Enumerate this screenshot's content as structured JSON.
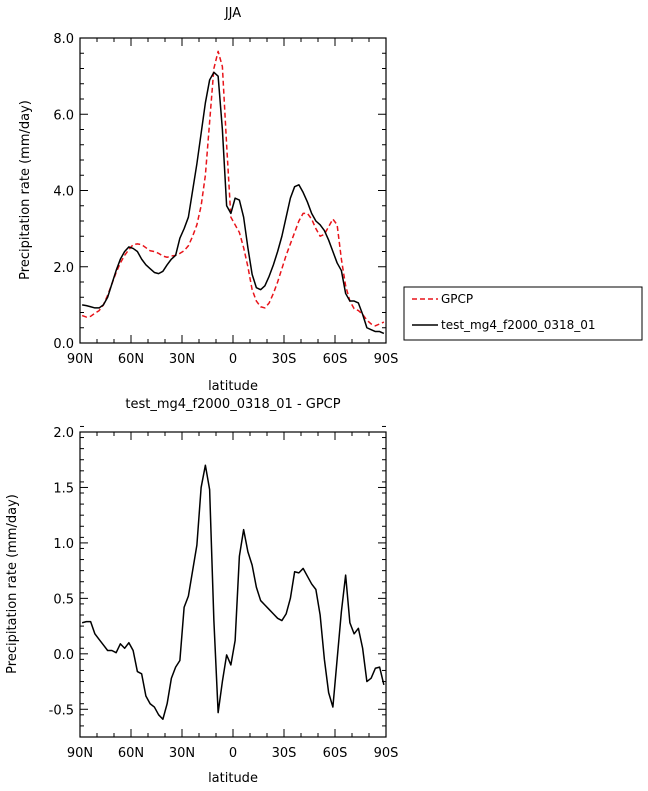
{
  "chart_data": [
    {
      "type": "line",
      "title": "JJA",
      "xlabel": "latitude",
      "ylabel": "Precipitation rate (mm/day)",
      "xlim": [
        90,
        -90
      ],
      "ylim": [
        0,
        8
      ],
      "xticks": [
        90,
        60,
        30,
        0,
        -30,
        -60,
        -90
      ],
      "xtick_labels": [
        "90N",
        "60N",
        "30N",
        "0",
        "30S",
        "60S",
        "90S"
      ],
      "yticks": [
        0,
        2,
        4,
        6,
        8
      ],
      "ytick_labels": [
        "0.0",
        "2.0",
        "4.0",
        "6.0",
        "8.0"
      ],
      "grid": false,
      "legend_position": "right",
      "series": [
        {
          "name": "GPCP",
          "color": "#e8141a",
          "dash": "dashed",
          "x": [
            88.75,
            86.25,
            83.75,
            81.25,
            78.75,
            76.25,
            73.75,
            71.25,
            68.75,
            66.25,
            63.75,
            61.25,
            58.75,
            56.25,
            53.75,
            51.25,
            48.75,
            46.25,
            43.75,
            41.25,
            38.75,
            36.25,
            33.75,
            31.25,
            28.75,
            26.25,
            23.75,
            21.25,
            18.75,
            16.25,
            13.75,
            11.25,
            8.75,
            6.25,
            3.75,
            1.25,
            -1.25,
            -3.75,
            -6.25,
            -8.75,
            -11.25,
            -13.75,
            -16.25,
            -18.75,
            -21.25,
            -23.75,
            -26.25,
            -28.75,
            -31.25,
            -33.75,
            -36.25,
            -38.75,
            -41.25,
            -43.75,
            -46.25,
            -48.75,
            -51.25,
            -53.75,
            -56.25,
            -58.75,
            -61.25,
            -63.75,
            -66.25,
            -68.75,
            -71.25,
            -73.75,
            -76.25,
            -78.75,
            -81.25,
            -83.75,
            -86.25,
            -88.75
          ],
          "y": [
            0.72,
            0.68,
            0.7,
            0.78,
            0.85,
            1.0,
            1.25,
            1.55,
            1.85,
            2.1,
            2.3,
            2.45,
            2.58,
            2.6,
            2.58,
            2.5,
            2.42,
            2.4,
            2.35,
            2.28,
            2.25,
            2.28,
            2.3,
            2.35,
            2.42,
            2.55,
            2.8,
            3.1,
            3.6,
            4.4,
            5.8,
            7.2,
            7.65,
            7.25,
            5.2,
            3.3,
            3.1,
            2.9,
            2.5,
            2.0,
            1.4,
            1.1,
            0.95,
            0.92,
            1.05,
            1.3,
            1.6,
            1.95,
            2.3,
            2.6,
            2.9,
            3.2,
            3.4,
            3.4,
            3.25,
            3.0,
            2.8,
            2.85,
            3.05,
            3.25,
            3.1,
            2.2,
            1.5,
            1.1,
            0.9,
            0.85,
            0.75,
            0.6,
            0.5,
            0.45,
            0.5,
            0.55
          ]
        },
        {
          "name": "test_mg4_f2000_0318_01",
          "color": "#000000",
          "dash": "solid",
          "x": [
            88.75,
            86.25,
            83.75,
            81.25,
            78.75,
            76.25,
            73.75,
            71.25,
            68.75,
            66.25,
            63.75,
            61.25,
            58.75,
            56.25,
            53.75,
            51.25,
            48.75,
            46.25,
            43.75,
            41.25,
            38.75,
            36.25,
            33.75,
            31.25,
            28.75,
            26.25,
            23.75,
            21.25,
            18.75,
            16.25,
            13.75,
            11.25,
            8.75,
            6.25,
            3.75,
            1.25,
            -1.25,
            -3.75,
            -6.25,
            -8.75,
            -11.25,
            -13.75,
            -16.25,
            -18.75,
            -21.25,
            -23.75,
            -26.25,
            -28.75,
            -31.25,
            -33.75,
            -36.25,
            -38.75,
            -41.25,
            -43.75,
            -46.25,
            -48.75,
            -51.25,
            -53.75,
            -56.25,
            -58.75,
            -61.25,
            -63.75,
            -66.25,
            -68.75,
            -71.25,
            -73.75,
            -76.25,
            -78.75,
            -81.25,
            -83.75,
            -86.25,
            -88.75
          ],
          "y": [
            1.0,
            0.98,
            0.95,
            0.92,
            0.92,
            1.0,
            1.2,
            1.55,
            1.9,
            2.2,
            2.4,
            2.52,
            2.48,
            2.4,
            2.2,
            2.05,
            1.95,
            1.85,
            1.82,
            1.88,
            2.05,
            2.2,
            2.3,
            2.75,
            3.0,
            3.3,
            4.0,
            4.7,
            5.5,
            6.3,
            6.9,
            7.1,
            7.0,
            5.6,
            3.6,
            3.4,
            3.8,
            3.75,
            3.3,
            2.5,
            1.8,
            1.45,
            1.4,
            1.5,
            1.75,
            2.05,
            2.4,
            2.8,
            3.3,
            3.8,
            4.1,
            4.15,
            3.95,
            3.7,
            3.4,
            3.2,
            3.1,
            2.95,
            2.7,
            2.4,
            2.1,
            1.9,
            1.3,
            1.1,
            1.1,
            1.05,
            0.75,
            0.4,
            0.35,
            0.3,
            0.3,
            0.25
          ]
        }
      ]
    },
    {
      "type": "line",
      "title": "test_mg4_f2000_0318_01 - GPCP",
      "xlabel": "latitude",
      "ylabel": "Precipitation rate (mm/day)",
      "xlim": [
        90,
        -90
      ],
      "ylim": [
        -0.75,
        2.0
      ],
      "xticks": [
        90,
        60,
        30,
        0,
        -30,
        -60,
        -90
      ],
      "xtick_labels": [
        "90N",
        "60N",
        "30N",
        "0",
        "30S",
        "60S",
        "90S"
      ],
      "yticks": [
        -0.5,
        0,
        0.5,
        1.0,
        1.5,
        2.0
      ],
      "ytick_labels": [
        "-0.5",
        "0.0",
        "0.5",
        "1.0",
        "1.5",
        "2.0"
      ],
      "grid": false,
      "series": [
        {
          "color": "#000000",
          "dash": "solid",
          "x": [
            88.75,
            86.25,
            83.75,
            81.25,
            78.75,
            76.25,
            73.75,
            71.25,
            68.75,
            66.25,
            63.75,
            61.25,
            58.75,
            56.25,
            53.75,
            51.25,
            48.75,
            46.25,
            43.75,
            41.25,
            38.75,
            36.25,
            33.75,
            31.25,
            28.75,
            26.25,
            23.75,
            21.25,
            18.75,
            16.25,
            13.75,
            11.25,
            8.75,
            6.25,
            3.75,
            1.25,
            -1.25,
            -3.75,
            -6.25,
            -8.75,
            -11.25,
            -13.75,
            -16.25,
            -18.75,
            -21.25,
            -23.75,
            -26.25,
            -28.75,
            -31.25,
            -33.75,
            -36.25,
            -38.75,
            -41.25,
            -43.75,
            -46.25,
            -48.75,
            -51.25,
            -53.75,
            -56.25,
            -58.75,
            -61.25,
            -63.75,
            -66.25,
            -68.75,
            -71.25,
            -73.75,
            -76.25,
            -78.75,
            -81.25,
            -83.75,
            -86.25,
            -88.75
          ],
          "y": [
            0.28,
            0.29,
            0.29,
            0.18,
            0.13,
            0.08,
            0.03,
            0.03,
            0.01,
            0.09,
            0.05,
            0.1,
            0.03,
            -0.16,
            -0.18,
            -0.38,
            -0.45,
            -0.48,
            -0.55,
            -0.59,
            -0.45,
            -0.22,
            -0.12,
            -0.06,
            0.42,
            0.52,
            0.75,
            0.98,
            1.5,
            1.7,
            1.48,
            0.3,
            -0.53,
            -0.25,
            -0.01,
            -0.1,
            0.12,
            0.88,
            1.12,
            0.92,
            0.8,
            0.6,
            0.48,
            0.44,
            0.4,
            0.36,
            0.32,
            0.3,
            0.36,
            0.5,
            0.74,
            0.73,
            0.77,
            0.7,
            0.63,
            0.58,
            0.35,
            -0.05,
            -0.35,
            -0.48,
            -0.05,
            0.38,
            0.71,
            0.28,
            0.18,
            0.23,
            0.05,
            -0.25,
            -0.22,
            -0.13,
            -0.12,
            -0.28
          ]
        }
      ]
    }
  ]
}
